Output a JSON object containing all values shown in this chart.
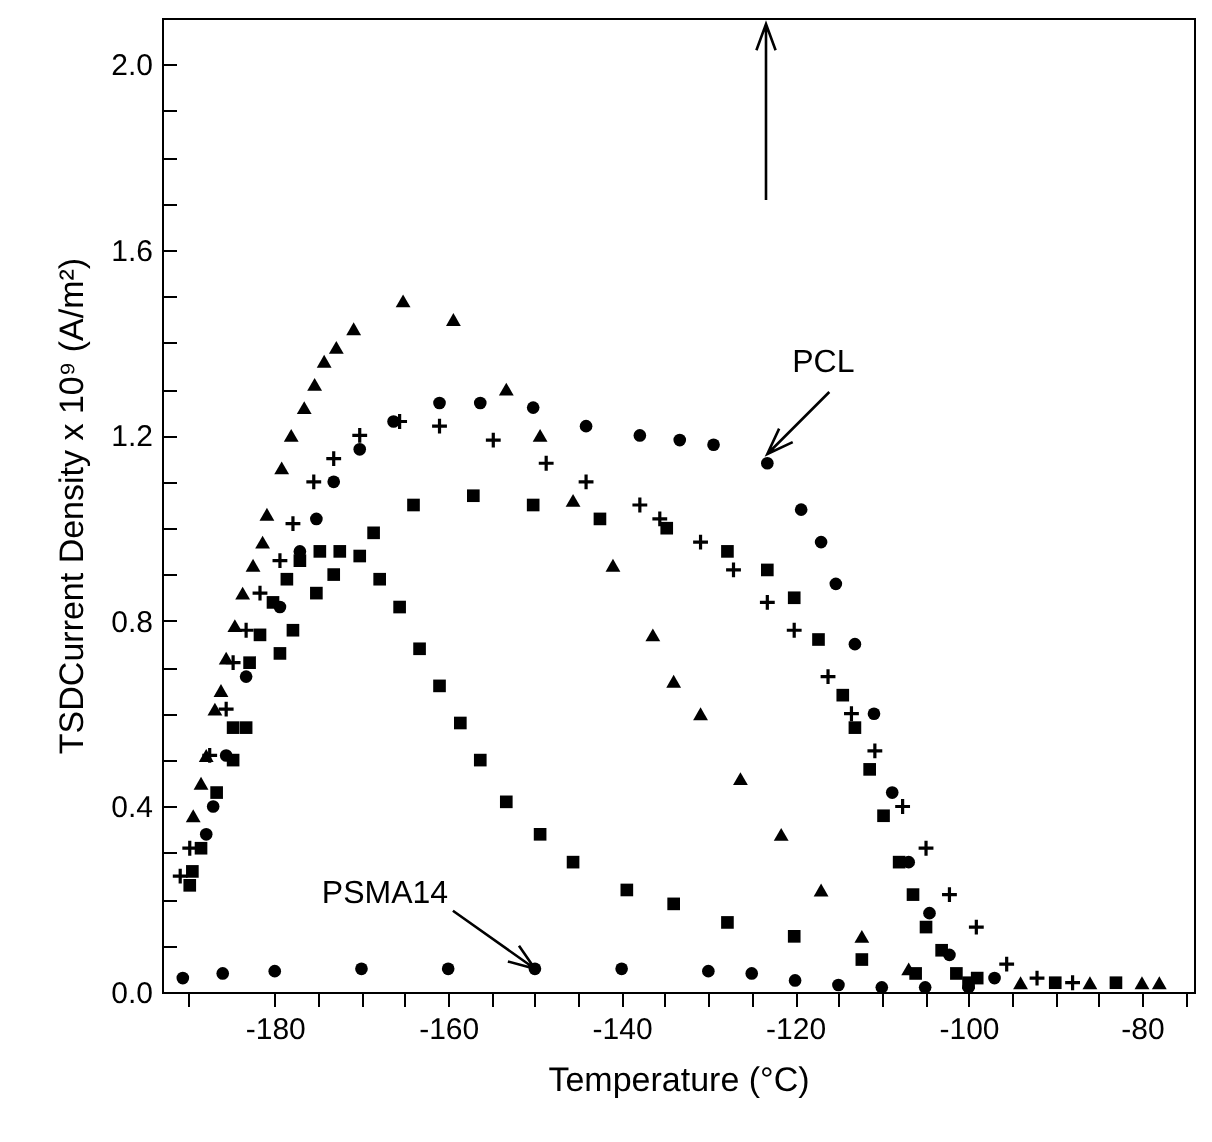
{
  "chart_data": {
    "type": "scatter",
    "xlabel": "Temperature (°C)",
    "ylabel": "TSDCurrent Density x 10⁹ (A/m²)",
    "xlim": [
      -193,
      -74
    ],
    "ylim": [
      0,
      2.1
    ],
    "xticks": [
      {
        "value": -190,
        "label": null
      },
      -180,
      {
        "value": -175,
        "label": null
      },
      {
        "value": -170,
        "label": null
      },
      {
        "value": -165,
        "label": null
      },
      -160,
      {
        "value": -155,
        "label": null
      },
      {
        "value": -150,
        "label": null
      },
      {
        "value": -145,
        "label": null
      },
      -140,
      {
        "value": -135,
        "label": null
      },
      {
        "value": -130,
        "label": null
      },
      {
        "value": -125,
        "label": null
      },
      -120,
      {
        "value": -115,
        "label": null
      },
      {
        "value": -110,
        "label": null
      },
      {
        "value": -105,
        "label": null
      },
      -100,
      {
        "value": -95,
        "label": null
      },
      {
        "value": -90,
        "label": null
      },
      {
        "value": -85,
        "label": null
      },
      -80,
      {
        "value": -75,
        "label": null
      }
    ],
    "yticks": [
      {
        "value": 0,
        "label": "0.0"
      },
      {
        "value": 0.1,
        "label": null
      },
      {
        "value": 0.2,
        "label": null
      },
      {
        "value": 0.3,
        "label": null
      },
      {
        "value": 0.4,
        "label": "0.4"
      },
      {
        "value": 0.5,
        "label": null
      },
      {
        "value": 0.6,
        "label": null
      },
      {
        "value": 0.7,
        "label": null
      },
      {
        "value": 0.8,
        "label": "0.8"
      },
      {
        "value": 0.9,
        "label": null
      },
      {
        "value": 1.0,
        "label": null
      },
      {
        "value": 1.1,
        "label": null
      },
      {
        "value": 1.2,
        "label": "1.2"
      },
      {
        "value": 1.3,
        "label": null
      },
      {
        "value": 1.4,
        "label": null
      },
      {
        "value": 1.5,
        "label": null
      },
      {
        "value": 1.6,
        "label": "1.6"
      },
      {
        "value": 1.7,
        "label": null
      },
      {
        "value": 1.8,
        "label": null
      },
      {
        "value": 1.9,
        "label": null
      },
      {
        "value": 2,
        "label": "2.0"
      }
    ],
    "annotations": [
      {
        "text": "PCL",
        "x": -123.2,
        "y": 1.16
      },
      {
        "text": "PSMA14",
        "x": -150,
        "y": 0.05
      }
    ],
    "series": [
      {
        "color": "#000000",
        "marker": "triangle",
        "x": [
          -189.4,
          -188.5,
          -187.9,
          -186.9,
          -186.2,
          -185.6,
          -184.6,
          -183.7,
          -182.5,
          -181.4,
          -180.9,
          -179.2,
          -178.1,
          -176.6,
          -175.4,
          -174.3,
          -172.9,
          -170.9,
          -165.2,
          -159.4,
          -153.3,
          -149.4,
          -145.6,
          -141.0,
          -136.4,
          -134.0,
          -130.9,
          -126.3,
          -121.6,
          -117.0,
          -112.3,
          -106.9,
          -94,
          -86,
          -80,
          -78
        ],
        "values": [
          0.38,
          0.45,
          0.51,
          0.61,
          0.65,
          0.72,
          0.79,
          0.86,
          0.92,
          0.97,
          1.03,
          1.13,
          1.2,
          1.26,
          1.31,
          1.36,
          1.39,
          1.43,
          1.49,
          1.45,
          1.3,
          1.2,
          1.06,
          0.92,
          0.77,
          0.67,
          0.6,
          0.46,
          0.34,
          0.22,
          0.12,
          0.05,
          0.02,
          0.02,
          0.02,
          0.02
        ]
      },
      {
        "color": "#000000",
        "marker": "circle",
        "x": [
          -187.9,
          -187.1,
          -185.6,
          -183.3,
          -179.4,
          -177.1,
          -175.2,
          -173.2,
          -170.2,
          -166.3,
          -161.0,
          -156.3,
          -150.2,
          -144.1,
          -137.9,
          -133.3,
          -129.4,
          -123.2,
          -119.3,
          -117.0,
          -115.3,
          -113.1,
          -110.9,
          -108.8,
          -106.9,
          -104.5,
          -102.2,
          -97
        ],
        "values": [
          0.34,
          0.4,
          0.51,
          0.68,
          0.83,
          0.95,
          1.02,
          1.1,
          1.17,
          1.23,
          1.27,
          1.27,
          1.26,
          1.22,
          1.2,
          1.19,
          1.18,
          1.14,
          1.04,
          0.97,
          0.88,
          0.75,
          0.6,
          0.43,
          0.28,
          0.17,
          0.08,
          0.03
        ]
      },
      {
        "color": "#000000",
        "marker": "cross",
        "x": [
          -190.9,
          -189.8,
          -187.5,
          -185.6,
          -184.8,
          -183.3,
          -181.7,
          -179.4,
          -177.9,
          -175.5,
          -173.2,
          -170.2,
          -165.6,
          -161.0,
          -154.8,
          -148.7,
          -144.1,
          -137.9,
          -135.6,
          -130.9,
          -127.1,
          -123.2,
          -120.1,
          -116.2,
          -113.5,
          -110.8,
          -107.6,
          -104.9,
          -102.2,
          -99.1,
          -95.6,
          -92.1,
          -88
        ],
        "values": [
          0.25,
          0.31,
          0.51,
          0.61,
          0.71,
          0.78,
          0.86,
          0.93,
          1.01,
          1.1,
          1.15,
          1.2,
          1.23,
          1.22,
          1.19,
          1.14,
          1.1,
          1.05,
          1.02,
          0.97,
          0.91,
          0.84,
          0.78,
          0.68,
          0.6,
          0.52,
          0.4,
          0.31,
          0.21,
          0.14,
          0.06,
          0.03,
          0.02
        ]
      },
      {
        "color": "#000000",
        "marker": "square",
        "x": [
          -189.8,
          -184.8,
          -183.3,
          -179.4,
          -177.9,
          -175.2,
          -173.2,
          -168.6,
          -164.0,
          -157.1,
          -150.2,
          -142.5,
          -134.8,
          -127.8,
          -123.2,
          -120.1,
          -117.3,
          -114.5,
          -113.1,
          -111.4,
          -109.8,
          -108.0,
          -106.4,
          -104.9,
          -103.1,
          -101.4,
          -99
        ],
        "values": [
          0.23,
          0.5,
          0.57,
          0.73,
          0.78,
          0.86,
          0.9,
          0.99,
          1.05,
          1.07,
          1.05,
          1.02,
          1.0,
          0.95,
          0.91,
          0.85,
          0.76,
          0.64,
          0.57,
          0.48,
          0.38,
          0.28,
          0.21,
          0.14,
          0.09,
          0.04,
          0.03
        ]
      },
      {
        "color": "#000000",
        "marker": "square",
        "x": [
          -189.5,
          -188.5,
          -186.7,
          -184.8,
          -182.9,
          -181.7,
          -180.2,
          -178.6,
          -177.1,
          -174.8,
          -172.5,
          -170.2,
          -167.9,
          -165.6,
          -163.3,
          -161.0,
          -158.6,
          -156.3,
          -153.3,
          -149.4,
          -145.6,
          -139.4,
          -134.0,
          -127.8,
          -120.1,
          -112.3,
          -106.1,
          -100,
          -90,
          -83
        ],
        "values": [
          0.26,
          0.31,
          0.43,
          0.57,
          0.71,
          0.77,
          0.84,
          0.89,
          0.93,
          0.95,
          0.95,
          0.94,
          0.89,
          0.83,
          0.74,
          0.66,
          0.58,
          0.5,
          0.41,
          0.34,
          0.28,
          0.22,
          0.19,
          0.15,
          0.12,
          0.07,
          0.04,
          0.02,
          0.02,
          0.02
        ]
      },
      {
        "color": "#000000",
        "marker": "circle",
        "x": [
          -190.6,
          -186,
          -180,
          -170,
          -160,
          -150,
          -140,
          -130,
          -125,
          -120,
          -115,
          -110,
          -105,
          -100
        ],
        "values": [
          0.03,
          0.04,
          0.045,
          0.05,
          0.05,
          0.05,
          0.05,
          0.045,
          0.04,
          0.025,
          0.015,
          0.01,
          0.01,
          0.01
        ]
      }
    ]
  }
}
